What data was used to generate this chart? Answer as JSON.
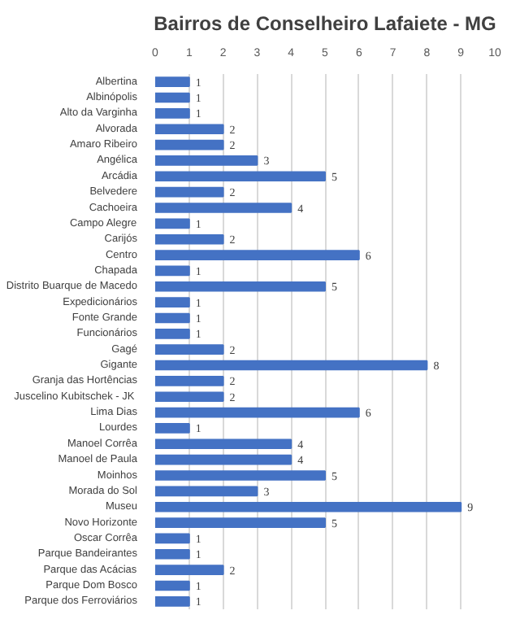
{
  "chart_data": {
    "type": "bar",
    "orientation": "horizontal",
    "title": "Bairros de Conselheiro Lafaiete - MG",
    "categories": [
      "Albertina",
      "Albinópolis",
      "Alto da Varginha",
      "Alvorada",
      "Amaro Ribeiro",
      "Angélica",
      "Arcádia",
      "Belvedere",
      "Cachoeira",
      "Campo Alegre",
      "Carijós",
      "Centro",
      "Chapada",
      "Distrito Buarque de Macedo",
      "Expedicionários",
      "Fonte Grande",
      "Funcionários",
      "Gagé",
      "Gigante",
      "Granja das Hortências",
      "Juscelino Kubitschek  - JK",
      "Lima Dias",
      "Lourdes",
      "Manoel Corrêa",
      "Manoel de Paula",
      "Moinhos",
      "Morada do Sol",
      "Museu",
      "Novo Horizonte",
      "Oscar Corrêa",
      "Parque Bandeirantes",
      "Parque das Acácias",
      "Parque Dom Bosco",
      "Parque dos Ferroviários"
    ],
    "values": [
      1,
      1,
      1,
      2,
      2,
      3,
      5,
      2,
      4,
      1,
      2,
      6,
      1,
      5,
      1,
      1,
      1,
      2,
      8,
      2,
      2,
      6,
      1,
      4,
      4,
      5,
      3,
      9,
      5,
      1,
      1,
      2,
      1,
      1
    ],
    "color": "#4472c4",
    "xlim": [
      0,
      10
    ],
    "xticks": [
      0,
      1,
      2,
      3,
      4,
      5,
      6,
      7,
      8,
      9,
      10
    ],
    "grid": "x",
    "data_labels": true
  }
}
